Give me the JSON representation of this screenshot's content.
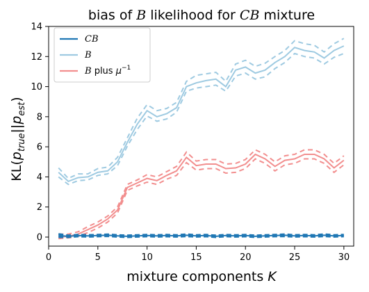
{
  "chart_data": {
    "type": "line",
    "title_parts": [
      "bias of ",
      "B",
      " likelihood for ",
      "CB",
      " mixture"
    ],
    "xlabel_parts": [
      "mixture components ",
      "K"
    ],
    "ylabel_parts": [
      "KL(",
      "p",
      "true",
      "||",
      "p",
      "est",
      ")"
    ],
    "xlim": [
      0,
      31
    ],
    "ylim": [
      -0.6,
      14
    ],
    "xticks": [
      0,
      5,
      10,
      15,
      20,
      25,
      30
    ],
    "yticks": [
      0,
      2,
      4,
      6,
      8,
      10,
      12,
      14
    ],
    "grid": false,
    "legend_position": "top-left",
    "x": [
      1,
      2,
      3,
      4,
      5,
      6,
      7,
      8,
      9,
      10,
      11,
      12,
      13,
      14,
      15,
      16,
      17,
      18,
      19,
      20,
      21,
      22,
      23,
      24,
      25,
      26,
      27,
      28,
      29,
      30
    ],
    "series": [
      {
        "legend_parts": [
          "CB"
        ],
        "color": "#1f77b4",
        "values": [
          0.1,
          0.05,
          0.1,
          0.08,
          0.1,
          0.12,
          0.08,
          0.05,
          0.08,
          0.1,
          0.08,
          0.1,
          0.08,
          0.12,
          0.08,
          0.1,
          0.05,
          0.1,
          0.08,
          0.1,
          0.05,
          0.08,
          0.1,
          0.12,
          0.08,
          0.1,
          0.08,
          0.12,
          0.08,
          0.1
        ],
        "upper": [
          0.2,
          0.1,
          0.15,
          0.13,
          0.15,
          0.17,
          0.13,
          0.1,
          0.13,
          0.15,
          0.13,
          0.15,
          0.13,
          0.18,
          0.13,
          0.15,
          0.1,
          0.15,
          0.13,
          0.15,
          0.1,
          0.13,
          0.15,
          0.18,
          0.13,
          0.15,
          0.13,
          0.18,
          0.13,
          0.15
        ],
        "lower": [
          0.0,
          0.0,
          0.05,
          0.03,
          0.05,
          0.07,
          0.03,
          0.0,
          0.03,
          0.05,
          0.03,
          0.05,
          0.03,
          0.06,
          0.03,
          0.05,
          0.0,
          0.05,
          0.03,
          0.05,
          0.0,
          0.03,
          0.05,
          0.06,
          0.03,
          0.05,
          0.03,
          0.06,
          0.03,
          0.05
        ]
      },
      {
        "legend_parts": [
          "B"
        ],
        "color": "#9ecae1",
        "values": [
          4.3,
          3.7,
          3.95,
          4.0,
          4.3,
          4.4,
          5.0,
          6.3,
          7.5,
          8.4,
          8.0,
          8.2,
          8.6,
          10.0,
          10.25,
          10.4,
          10.5,
          10.0,
          11.1,
          11.3,
          10.9,
          11.1,
          11.6,
          12.0,
          12.6,
          12.4,
          12.3,
          11.9,
          12.4,
          12.7
        ],
        "upper": [
          4.6,
          3.9,
          4.2,
          4.2,
          4.55,
          4.65,
          5.3,
          6.6,
          7.9,
          8.8,
          8.4,
          8.55,
          8.95,
          10.35,
          10.75,
          10.85,
          10.95,
          10.35,
          11.5,
          11.75,
          11.35,
          11.55,
          12.0,
          12.4,
          13.05,
          12.85,
          12.75,
          12.3,
          12.85,
          13.2
        ],
        "lower": [
          4.0,
          3.5,
          3.75,
          3.8,
          4.1,
          4.2,
          4.75,
          6.05,
          7.15,
          8.05,
          7.7,
          7.85,
          8.3,
          9.7,
          9.9,
          10.0,
          10.1,
          9.7,
          10.7,
          10.9,
          10.5,
          10.65,
          11.2,
          11.6,
          12.2,
          12.0,
          11.9,
          11.5,
          11.95,
          12.2
        ]
      },
      {
        "legend_parts": [
          "B",
          " plus ",
          "μ",
          "−1"
        ],
        "color": "#f28e8e",
        "values": [
          0.0,
          0.05,
          0.2,
          0.5,
          0.8,
          1.2,
          1.8,
          3.3,
          3.6,
          3.9,
          3.75,
          4.1,
          4.4,
          5.3,
          4.75,
          4.85,
          4.85,
          4.55,
          4.6,
          4.85,
          5.5,
          5.2,
          4.7,
          5.1,
          5.2,
          5.5,
          5.5,
          5.2,
          4.6,
          5.1
        ],
        "upper": [
          0.2,
          0.2,
          0.35,
          0.7,
          1.0,
          1.4,
          2.0,
          3.5,
          3.8,
          4.15,
          4.0,
          4.35,
          4.7,
          5.65,
          5.05,
          5.15,
          5.15,
          4.85,
          4.9,
          5.15,
          5.8,
          5.5,
          5.0,
          5.4,
          5.5,
          5.8,
          5.8,
          5.5,
          4.9,
          5.4
        ],
        "lower": [
          -0.1,
          -0.05,
          0.05,
          0.3,
          0.6,
          1.0,
          1.6,
          3.1,
          3.4,
          3.65,
          3.5,
          3.85,
          4.1,
          4.95,
          4.45,
          4.55,
          4.55,
          4.25,
          4.3,
          4.55,
          5.2,
          4.9,
          4.4,
          4.8,
          4.9,
          5.2,
          5.2,
          4.9,
          4.3,
          4.8
        ]
      }
    ]
  }
}
